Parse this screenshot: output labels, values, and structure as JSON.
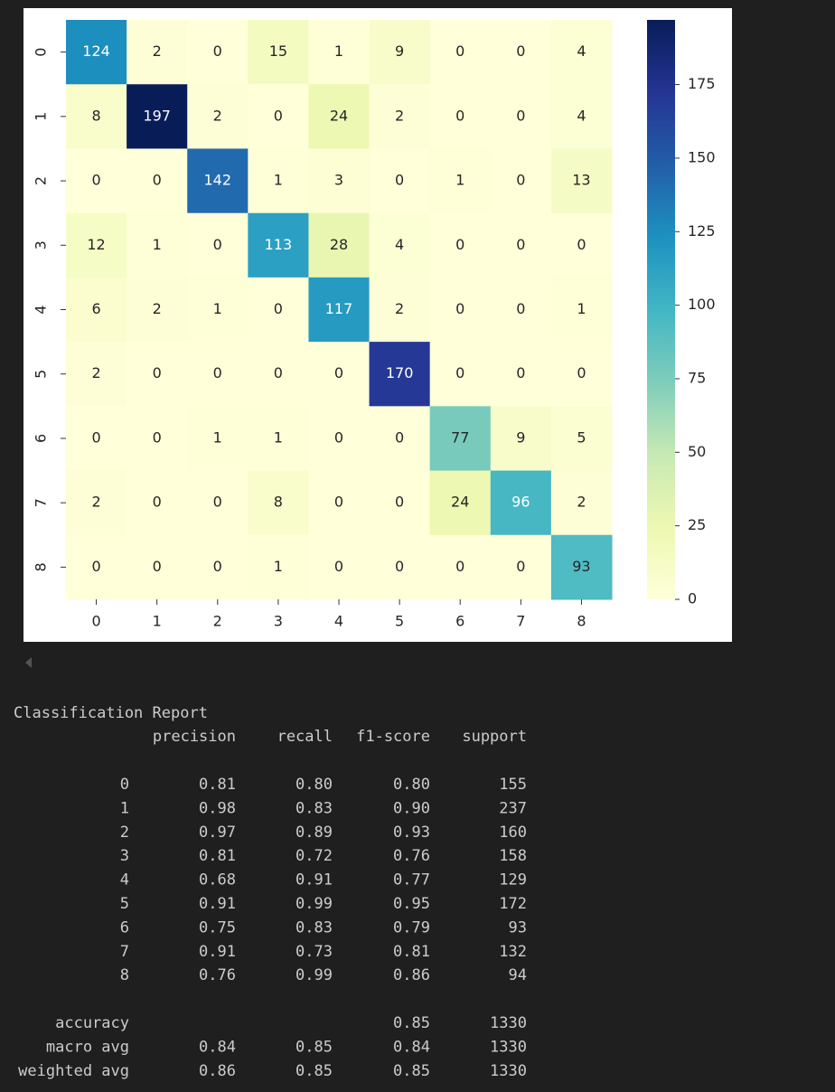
{
  "chart_data": {
    "type": "heatmap",
    "x": [
      "0",
      "1",
      "2",
      "3",
      "4",
      "5",
      "6",
      "7",
      "8"
    ],
    "y": [
      "0",
      "1",
      "2",
      "3",
      "4",
      "5",
      "6",
      "7",
      "8"
    ],
    "values": [
      [
        124,
        2,
        0,
        15,
        1,
        9,
        0,
        0,
        4
      ],
      [
        8,
        197,
        2,
        0,
        24,
        2,
        0,
        0,
        4
      ],
      [
        0,
        0,
        142,
        1,
        3,
        0,
        1,
        0,
        13
      ],
      [
        12,
        1,
        0,
        113,
        28,
        4,
        0,
        0,
        0
      ],
      [
        6,
        2,
        1,
        0,
        117,
        2,
        0,
        0,
        1
      ],
      [
        2,
        0,
        0,
        0,
        0,
        170,
        0,
        0,
        0
      ],
      [
        0,
        0,
        1,
        1,
        0,
        0,
        77,
        9,
        5
      ],
      [
        2,
        0,
        0,
        8,
        0,
        0,
        24,
        96,
        2
      ],
      [
        0,
        0,
        0,
        1,
        0,
        0,
        0,
        0,
        93
      ]
    ],
    "colormap": "YlGnBu",
    "colorbar": {
      "lim": [
        0,
        197
      ],
      "ticks": [
        0,
        25,
        50,
        75,
        100,
        125,
        150,
        175
      ]
    }
  },
  "report": {
    "title": "Classification Report",
    "columns": [
      "precision",
      "recall",
      "f1-score",
      "support"
    ],
    "rows": [
      [
        "0",
        "0.81",
        "0.80",
        "0.80",
        "155"
      ],
      [
        "1",
        "0.98",
        "0.83",
        "0.90",
        "237"
      ],
      [
        "2",
        "0.97",
        "0.89",
        "0.93",
        "160"
      ],
      [
        "3",
        "0.81",
        "0.72",
        "0.76",
        "158"
      ],
      [
        "4",
        "0.68",
        "0.91",
        "0.77",
        "129"
      ],
      [
        "5",
        "0.91",
        "0.99",
        "0.95",
        "172"
      ],
      [
        "6",
        "0.75",
        "0.83",
        "0.79",
        "93"
      ],
      [
        "7",
        "0.91",
        "0.73",
        "0.81",
        "132"
      ],
      [
        "8",
        "0.76",
        "0.99",
        "0.86",
        "94"
      ]
    ],
    "averages": [
      [
        "accuracy",
        null,
        null,
        "0.85",
        "1330"
      ],
      [
        "macro avg",
        "0.84",
        "0.85",
        "0.84",
        "1330"
      ],
      [
        "weighted avg",
        "0.86",
        "0.85",
        "0.85",
        "1330"
      ]
    ]
  }
}
